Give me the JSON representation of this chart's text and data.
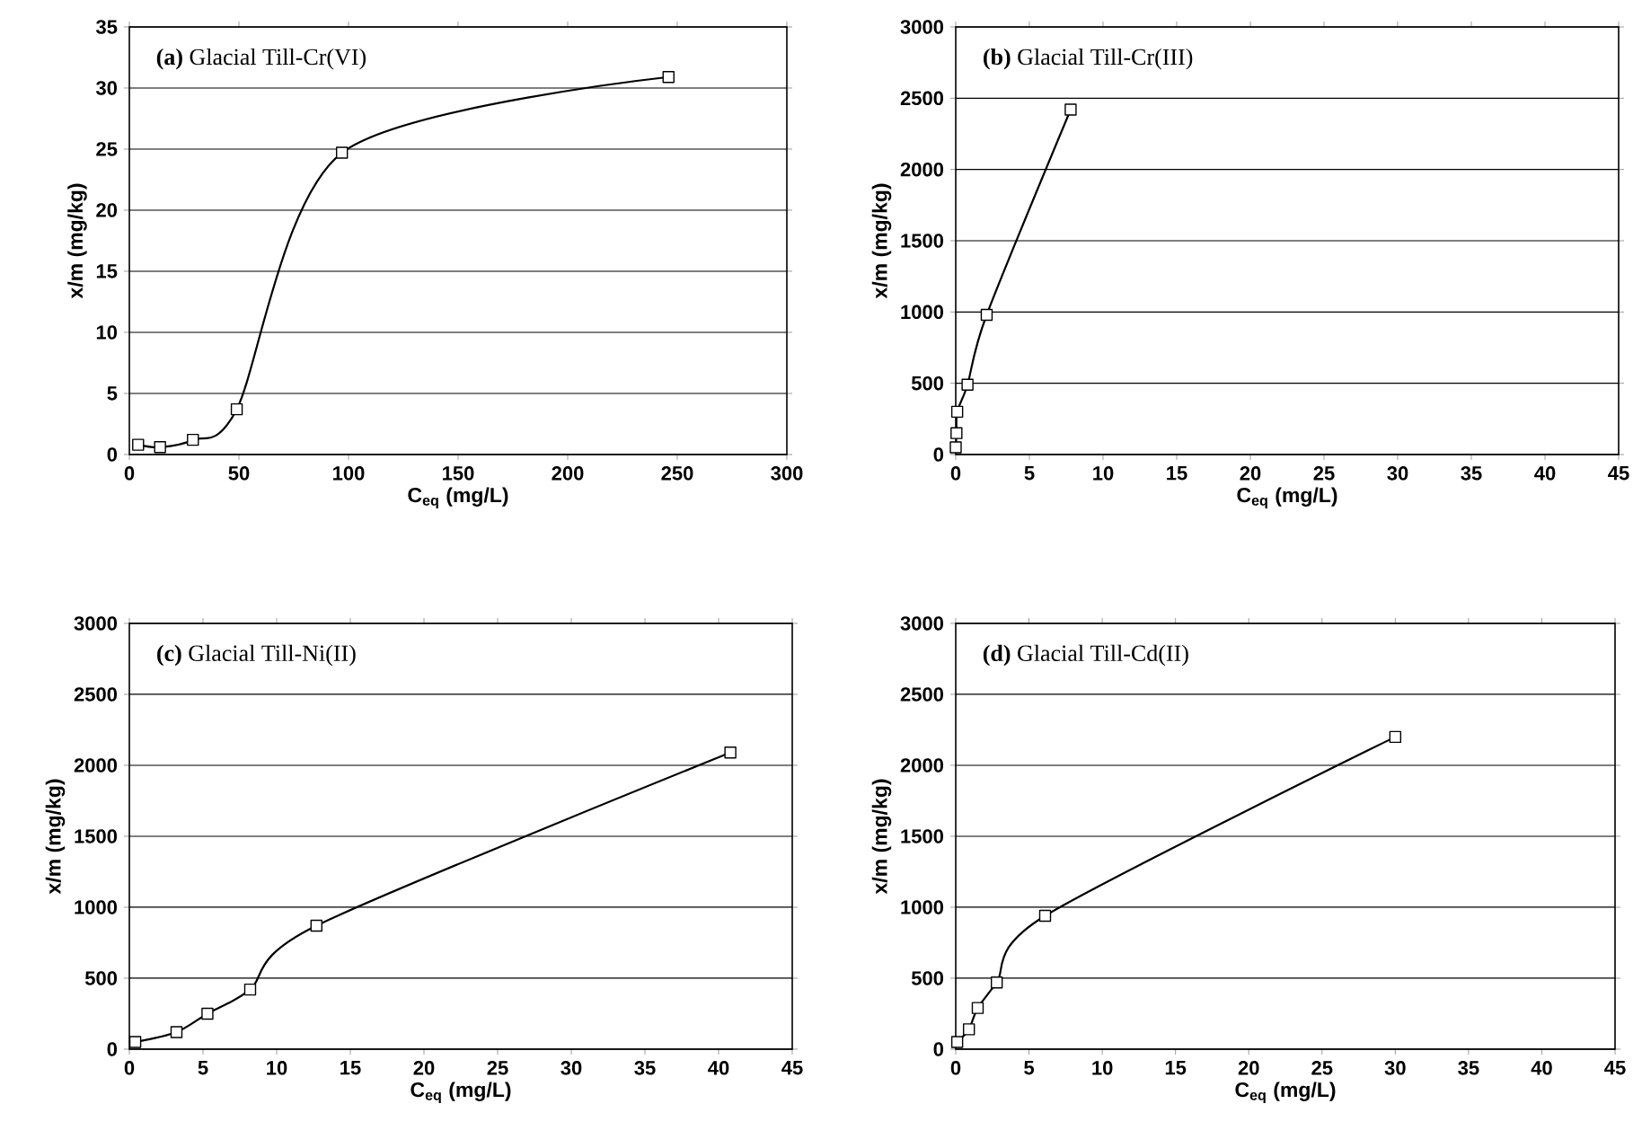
{
  "chart_data": [
    {
      "type": "line",
      "title": "**(a)** Glacial Till-Cr(VI)",
      "xlabel": "C$_{eq}$ (mg/L)",
      "ylabel": "x/m (mg/kg)",
      "color": "#000000",
      "marker": "square",
      "grid": "y",
      "x": [
        4,
        14,
        29,
        49,
        97,
        246
      ],
      "values": [
        0.8,
        0.6,
        1.2,
        3.7,
        24.7,
        30.9
      ],
      "xlim": [
        0,
        300
      ],
      "ylim": [
        0,
        35
      ],
      "xticks": [
        0,
        50,
        100,
        150,
        200,
        250,
        300
      ],
      "yticks": [
        0,
        5,
        10,
        15,
        20,
        25,
        30,
        35
      ]
    },
    {
      "type": "line",
      "title": "**(b)** Glacial Till-Cr(III)",
      "xlabel": "C$_{eq}$ (mg/L)",
      "ylabel": "x/m (mg/kg)",
      "color": "#000000",
      "marker": "square",
      "grid": "y",
      "x": [
        0,
        0.05,
        0.1,
        0.8,
        2.1,
        7.8
      ],
      "values": [
        50,
        150,
        300,
        490,
        980,
        2420
      ],
      "xlim": [
        0,
        45
      ],
      "ylim": [
        0,
        3000
      ],
      "xticks": [
        0,
        5,
        10,
        15,
        20,
        25,
        30,
        35,
        40,
        45
      ],
      "yticks": [
        0,
        500,
        1000,
        1500,
        2000,
        2500,
        3000
      ]
    },
    {
      "type": "line",
      "title": "**(c)** Glacial Till-Ni(II)",
      "xlabel": "C$_{eq}$ (mg/L)",
      "ylabel": "x/m (mg/kg)",
      "color": "#000000",
      "marker": "square",
      "grid": "y",
      "x": [
        0.4,
        3.2,
        5.3,
        8.2,
        12.7,
        40.8
      ],
      "values": [
        50,
        120,
        250,
        420,
        870,
        2090
      ],
      "xlim": [
        0,
        45
      ],
      "ylim": [
        0,
        3000
      ],
      "xticks": [
        0,
        5,
        10,
        15,
        20,
        25,
        30,
        35,
        40,
        45
      ],
      "yticks": [
        0,
        500,
        1000,
        1500,
        2000,
        2500,
        3000
      ]
    },
    {
      "type": "line",
      "title": "**(d)** Glacial Till-Cd(II)",
      "xlabel": "C$_{eq}$ (mg/L)",
      "ylabel": "x/m (mg/kg)",
      "color": "#000000",
      "marker": "square",
      "grid": "y",
      "x": [
        0.1,
        0.9,
        1.5,
        2.8,
        6.1,
        30
      ],
      "values": [
        50,
        140,
        290,
        470,
        940,
        2200
      ],
      "xlim": [
        0,
        45
      ],
      "ylim": [
        0,
        3000
      ],
      "xticks": [
        0,
        5,
        10,
        15,
        20,
        25,
        30,
        35,
        40,
        45
      ],
      "yticks": [
        0,
        500,
        1000,
        1500,
        2000,
        2500,
        3000
      ]
    }
  ]
}
